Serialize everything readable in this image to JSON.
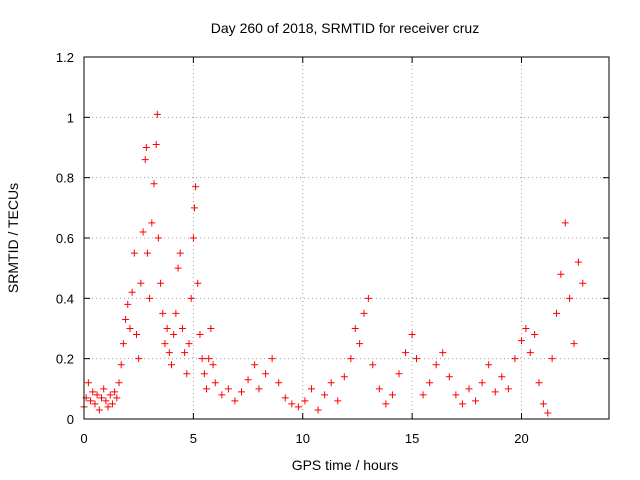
{
  "chart_data": {
    "type": "scatter",
    "title": "Day 260 of 2018, SRMTID for receiver cruz",
    "xlabel": "GPS time / hours",
    "ylabel": "SRMTID / TECUs",
    "xlim": [
      0,
      24
    ],
    "ylim": [
      0,
      1.2
    ],
    "xticks": [
      0,
      5,
      10,
      15,
      20
    ],
    "yticks": [
      0,
      0.2,
      0.4,
      0.6,
      0.8,
      1,
      1.2
    ],
    "xtick_labels": [
      "0",
      "5",
      "10",
      "15",
      "20"
    ],
    "ytick_labels": [
      "0",
      "0.2",
      "0.4",
      "0.6",
      "0.8",
      "1",
      "1.2"
    ],
    "grid": true,
    "marker": "plus",
    "color": "#ff0000",
    "series": [
      {
        "name": "SRMTID",
        "points": [
          [
            0.0,
            0.04
          ],
          [
            0.1,
            0.07
          ],
          [
            0.2,
            0.12
          ],
          [
            0.3,
            0.06
          ],
          [
            0.4,
            0.09
          ],
          [
            0.5,
            0.05
          ],
          [
            0.6,
            0.08
          ],
          [
            0.7,
            0.03
          ],
          [
            0.8,
            0.07
          ],
          [
            0.9,
            0.1
          ],
          [
            1.0,
            0.06
          ],
          [
            1.1,
            0.04
          ],
          [
            1.2,
            0.08
          ],
          [
            1.3,
            0.05
          ],
          [
            1.4,
            0.09
          ],
          [
            1.5,
            0.07
          ],
          [
            1.6,
            0.12
          ],
          [
            1.7,
            0.18
          ],
          [
            1.8,
            0.25
          ],
          [
            1.9,
            0.33
          ],
          [
            2.0,
            0.38
          ],
          [
            2.1,
            0.3
          ],
          [
            2.2,
            0.42
          ],
          [
            2.3,
            0.55
          ],
          [
            2.4,
            0.28
          ],
          [
            2.5,
            0.2
          ],
          [
            2.6,
            0.45
          ],
          [
            2.7,
            0.62
          ],
          [
            2.8,
            0.86
          ],
          [
            2.85,
            0.9
          ],
          [
            2.9,
            0.55
          ],
          [
            3.0,
            0.4
          ],
          [
            3.1,
            0.65
          ],
          [
            3.2,
            0.78
          ],
          [
            3.3,
            0.91
          ],
          [
            3.35,
            1.01
          ],
          [
            3.4,
            0.6
          ],
          [
            3.5,
            0.45
          ],
          [
            3.6,
            0.35
          ],
          [
            3.7,
            0.25
          ],
          [
            3.8,
            0.3
          ],
          [
            3.9,
            0.22
          ],
          [
            4.0,
            0.18
          ],
          [
            4.1,
            0.28
          ],
          [
            4.2,
            0.35
          ],
          [
            4.3,
            0.5
          ],
          [
            4.4,
            0.55
          ],
          [
            4.5,
            0.3
          ],
          [
            4.6,
            0.22
          ],
          [
            4.7,
            0.15
          ],
          [
            4.8,
            0.25
          ],
          [
            4.9,
            0.4
          ],
          [
            5.0,
            0.6
          ],
          [
            5.05,
            0.7
          ],
          [
            5.1,
            0.77
          ],
          [
            5.2,
            0.45
          ],
          [
            5.3,
            0.28
          ],
          [
            5.4,
            0.2
          ],
          [
            5.5,
            0.15
          ],
          [
            5.6,
            0.1
          ],
          [
            5.7,
            0.2
          ],
          [
            5.8,
            0.3
          ],
          [
            5.9,
            0.18
          ],
          [
            6.0,
            0.12
          ],
          [
            6.3,
            0.08
          ],
          [
            6.6,
            0.1
          ],
          [
            6.9,
            0.06
          ],
          [
            7.2,
            0.09
          ],
          [
            7.5,
            0.13
          ],
          [
            7.8,
            0.18
          ],
          [
            8.0,
            0.1
          ],
          [
            8.3,
            0.15
          ],
          [
            8.6,
            0.2
          ],
          [
            8.9,
            0.12
          ],
          [
            9.2,
            0.07
          ],
          [
            9.5,
            0.05
          ],
          [
            9.8,
            0.04
          ],
          [
            10.1,
            0.06
          ],
          [
            10.4,
            0.1
          ],
          [
            10.7,
            0.03
          ],
          [
            11.0,
            0.08
          ],
          [
            11.3,
            0.12
          ],
          [
            11.6,
            0.06
          ],
          [
            11.9,
            0.14
          ],
          [
            12.2,
            0.2
          ],
          [
            12.4,
            0.3
          ],
          [
            12.6,
            0.25
          ],
          [
            12.8,
            0.35
          ],
          [
            13.0,
            0.4
          ],
          [
            13.2,
            0.18
          ],
          [
            13.5,
            0.1
          ],
          [
            13.8,
            0.05
          ],
          [
            14.1,
            0.08
          ],
          [
            14.4,
            0.15
          ],
          [
            14.7,
            0.22
          ],
          [
            15.0,
            0.28
          ],
          [
            15.2,
            0.2
          ],
          [
            15.5,
            0.08
          ],
          [
            15.8,
            0.12
          ],
          [
            16.1,
            0.18
          ],
          [
            16.4,
            0.22
          ],
          [
            16.7,
            0.14
          ],
          [
            17.0,
            0.08
          ],
          [
            17.3,
            0.05
          ],
          [
            17.6,
            0.1
          ],
          [
            17.9,
            0.06
          ],
          [
            18.2,
            0.12
          ],
          [
            18.5,
            0.18
          ],
          [
            18.8,
            0.09
          ],
          [
            19.1,
            0.14
          ],
          [
            19.4,
            0.1
          ],
          [
            19.7,
            0.2
          ],
          [
            20.0,
            0.26
          ],
          [
            20.2,
            0.3
          ],
          [
            20.4,
            0.22
          ],
          [
            20.6,
            0.28
          ],
          [
            20.8,
            0.12
          ],
          [
            21.0,
            0.05
          ],
          [
            21.2,
            0.02
          ],
          [
            21.4,
            0.2
          ],
          [
            21.6,
            0.35
          ],
          [
            21.8,
            0.48
          ],
          [
            22.0,
            0.65
          ],
          [
            22.2,
            0.4
          ],
          [
            22.4,
            0.25
          ],
          [
            22.6,
            0.52
          ],
          [
            22.8,
            0.45
          ]
        ]
      }
    ]
  }
}
